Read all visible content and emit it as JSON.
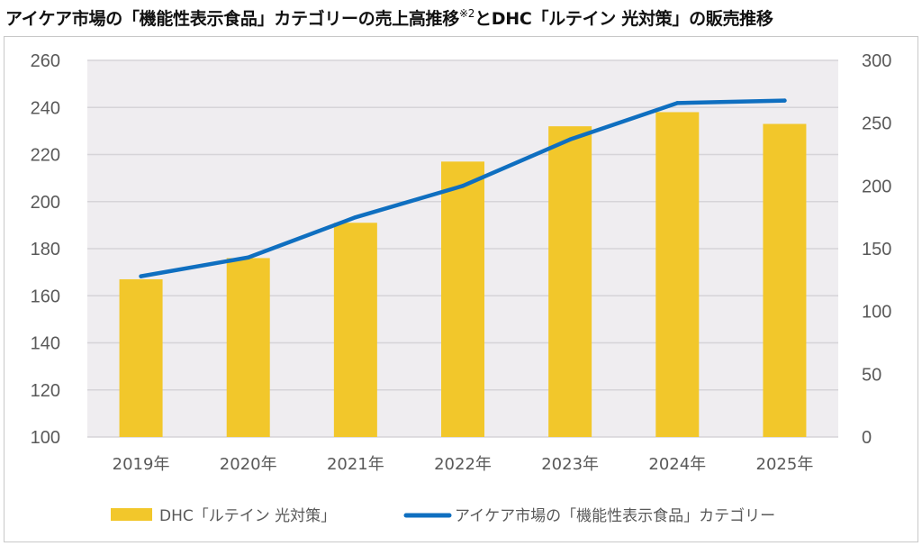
{
  "title": {
    "main": "アイケア市場の「機能性表示食品」カテゴリーの売上高推移",
    "superscript": "※2",
    "tail": "とDHC「ルテイン 光対策」の販売推移"
  },
  "colors": {
    "bar": "#F2C72B",
    "line": "#0F6FC0",
    "plot_bg": "#EFEDF0",
    "grid": "#D6D4D8",
    "text": "#595959"
  },
  "chart_data": {
    "type": "bar",
    "categories": [
      "2019年",
      "2020年",
      "2021年",
      "2022年",
      "2023年",
      "2024年",
      "2025年"
    ],
    "series": [
      {
        "name": "DHC「ルテイン 光対策」",
        "type": "bar",
        "axis": "left",
        "values": [
          167,
          176,
          191,
          217,
          232,
          238,
          233
        ]
      },
      {
        "name": "アイケア市場の「機能性表示食品」カテゴリー",
        "type": "line",
        "axis": "right",
        "values": [
          128,
          143,
          175,
          200,
          237,
          266,
          268
        ]
      }
    ],
    "y_left": {
      "min": 100,
      "max": 260,
      "ticks": [
        100,
        120,
        140,
        160,
        180,
        200,
        220,
        240,
        260
      ]
    },
    "y_right": {
      "min": 0,
      "max": 300,
      "ticks": [
        0,
        50,
        100,
        150,
        200,
        250,
        300
      ]
    },
    "grid": true,
    "legend_position": "bottom"
  }
}
